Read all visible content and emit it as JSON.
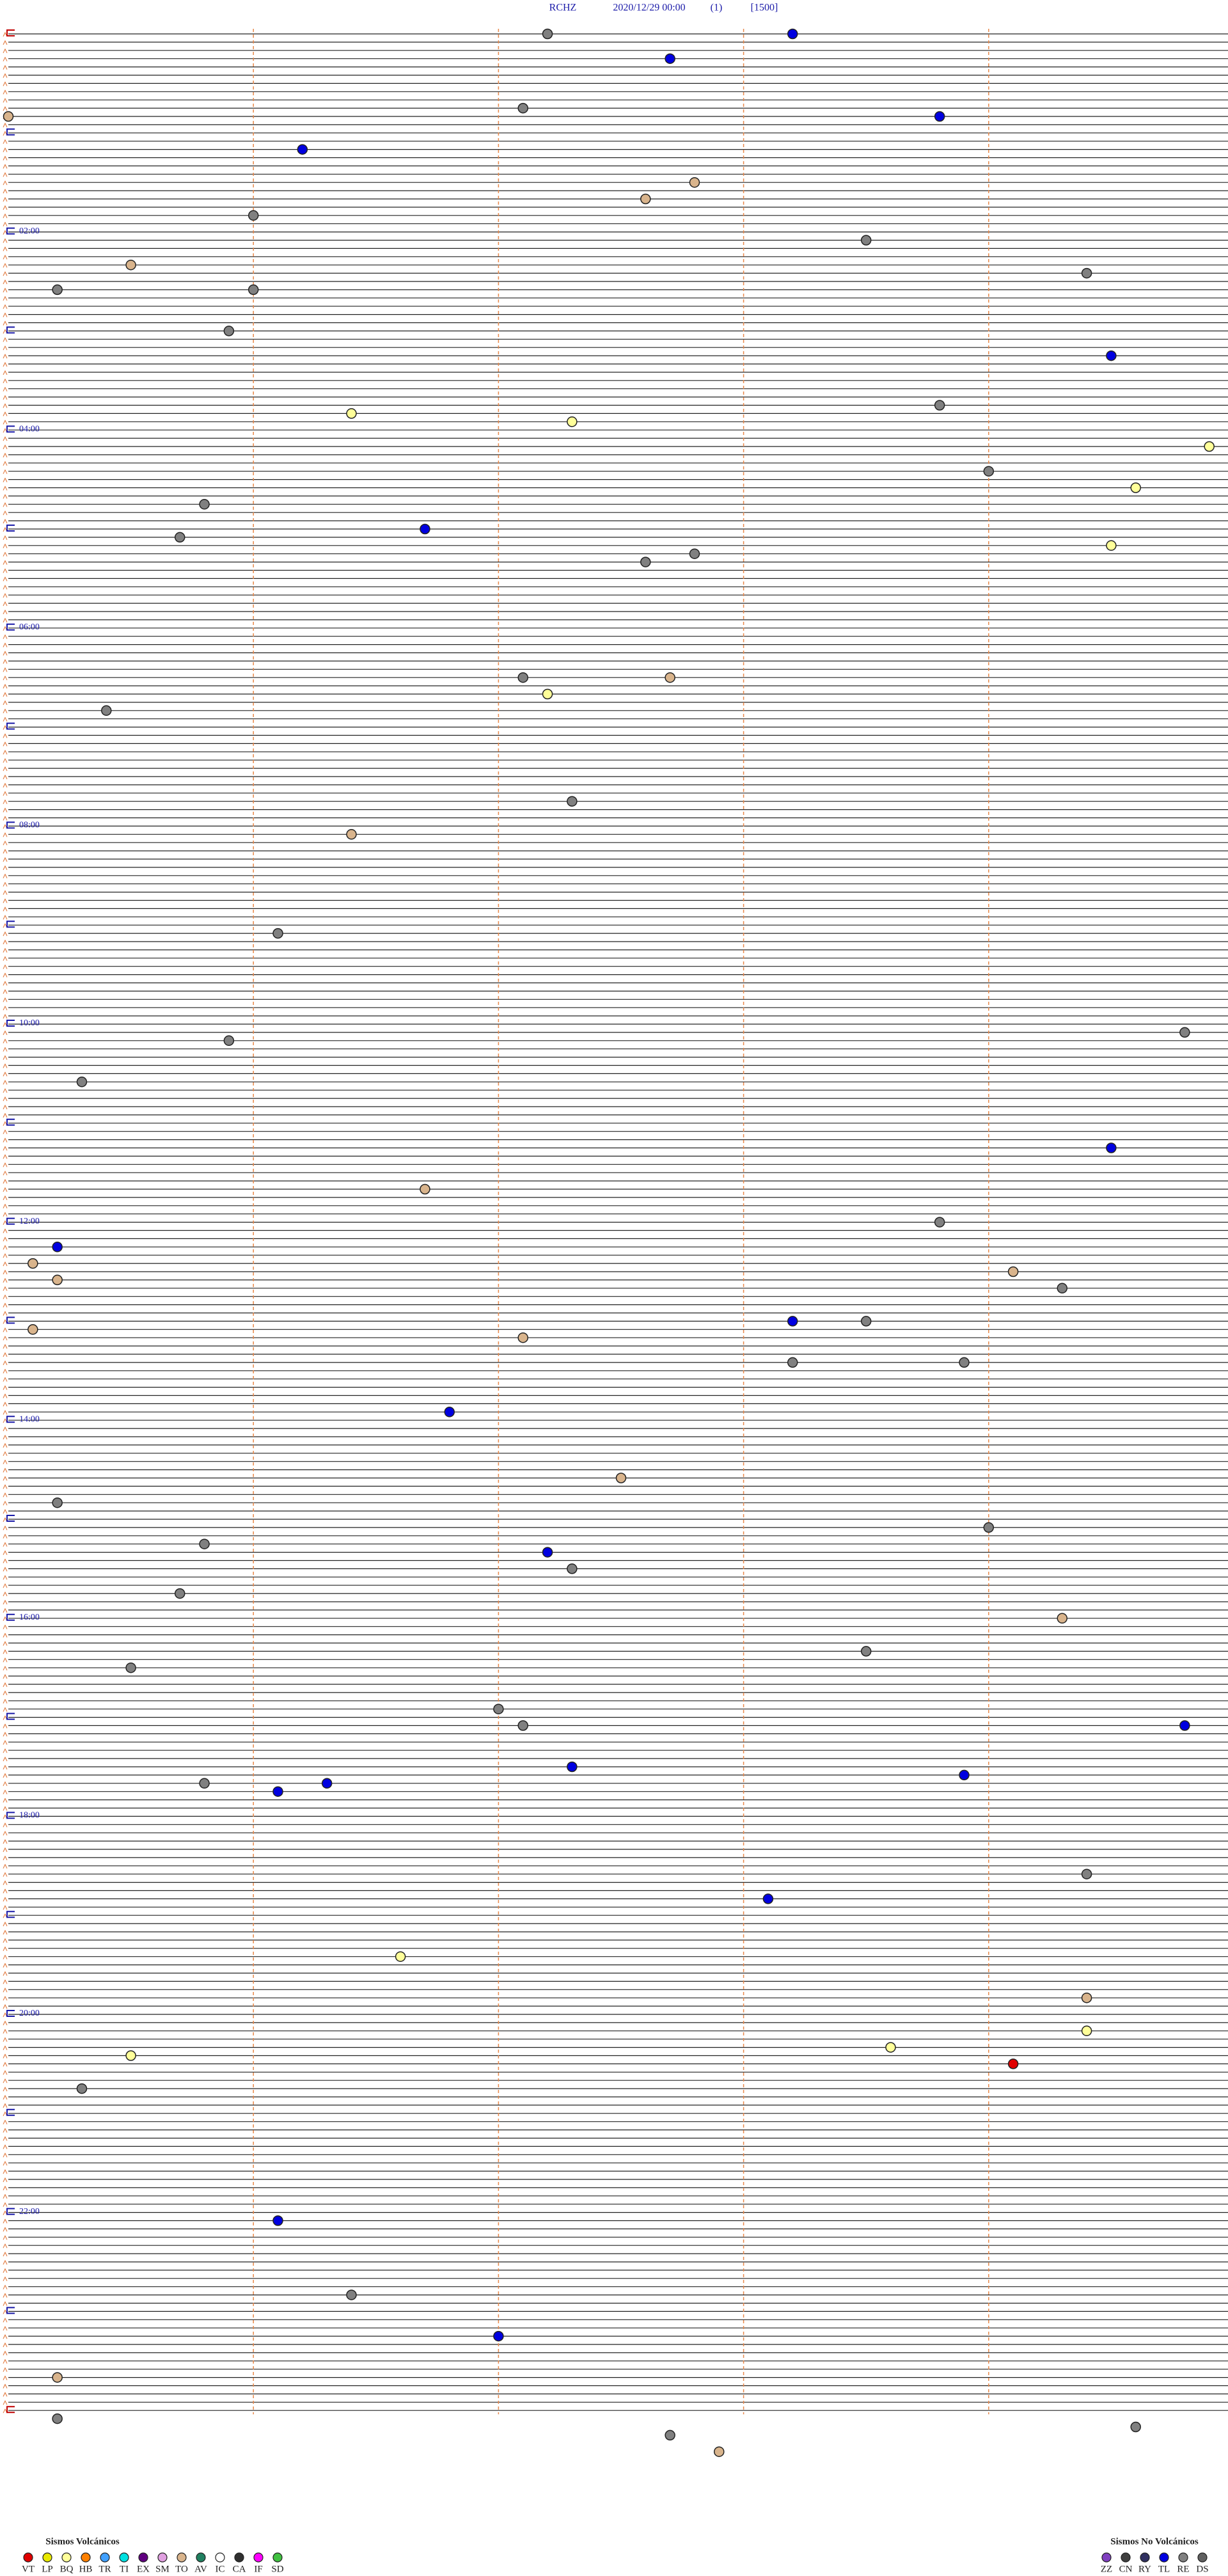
{
  "chart_data": {
    "type": "helicorder",
    "station": "RCHZ",
    "date": "2020/12/29 00:00",
    "page": "(1)",
    "scale": "[1500]",
    "xlim": [
      0,
      5
    ],
    "xgrid": [
      1,
      2,
      3,
      4
    ],
    "ylim": [
      0,
      1440
    ],
    "row_minutes": 5,
    "yticks": [
      {
        "value": 120,
        "label": "02:00"
      },
      {
        "value": 240,
        "label": "04:00"
      },
      {
        "value": 360,
        "label": "06:00"
      },
      {
        "value": 480,
        "label": "08:00"
      },
      {
        "value": 600,
        "label": "10:00"
      },
      {
        "value": 720,
        "label": "12:00"
      },
      {
        "value": 840,
        "label": "14:00"
      },
      {
        "value": 960,
        "label": "16:00"
      },
      {
        "value": 1080,
        "label": "18:00"
      },
      {
        "value": 1200,
        "label": "20:00"
      },
      {
        "value": 1320,
        "label": "22:00"
      }
    ],
    "legend": [
      {
        "title": "Sismos Volcánicos",
        "corner": "bottom-left",
        "items": [
          {
            "label": "VT",
            "color": "#e00000",
            "events": [
              1234.1
            ]
          },
          {
            "label": "LP",
            "color": "#e8e800",
            "events": []
          },
          {
            "label": "BQ",
            "color": "#ffff99",
            "events": [
              231.4,
              237.3,
              254.9,
              279.6,
              314.5,
              402.2,
              1166.6,
              1214.4,
              1223.6,
              1225.5
            ]
          },
          {
            "label": "HB",
            "color": "#ff8000",
            "events": []
          },
          {
            "label": "TR",
            "color": "#40a0ff",
            "events": []
          },
          {
            "label": "TI",
            "color": "#00e0e0",
            "events": []
          },
          {
            "label": "EX",
            "color": "#600080",
            "events": []
          },
          {
            "label": "SM",
            "color": "#e0a0e0",
            "events": []
          },
          {
            "label": "TO",
            "color": "#d9b48c",
            "events": [
              50.0,
              92.8,
              102.6,
              140.5,
              392.7,
              486.4,
              701.7,
              745.1,
              755.2,
              754.1,
              785.1,
              792.1,
              877.5,
              964.3,
              1194.4,
              1420.2,
              1467.9
            ]
          },
          {
            "label": "AV",
            "color": "#208060",
            "events": []
          },
          {
            "label": "IC",
            "color": "#ffffff",
            "events": []
          },
          {
            "label": "CA",
            "color": "#303030",
            "events": []
          },
          {
            "label": "IF",
            "color": "#ff00ff",
            "events": []
          },
          {
            "label": "SD",
            "color": "#40c040",
            "events": []
          }
        ]
      },
      {
        "title": "Sismos No Volcánicos",
        "corner": "bottom-right",
        "items": [
          {
            "label": "ZZ",
            "color": "#8040c0",
            "events": []
          },
          {
            "label": "CN",
            "color": "#404040",
            "events": []
          },
          {
            "label": "RY",
            "color": "#303060",
            "events": []
          },
          {
            "label": "TL",
            "color": "#0000e0",
            "events": [
              3.2,
              17.7,
              53.8,
              71.2,
              199.5,
              301.7,
              679.5,
              735.2,
              783.2,
              836.8,
              922.2,
              1029.8,
              1052.3,
              1061.3,
              1066.1,
              1058.9,
              1133.1,
              1326.1,
              1397.0
            ]
          },
          {
            "label": "RE",
            "color": "#808080",
            "events": [
              2.2,
              47.1,
              111.0,
              128.5,
              149.4,
              155.2,
              156.0,
              180.9,
              228.8,
              269.0,
              285.8,
              305.7,
              317.8,
              322.6,
              392.1,
              410.4,
              467.3,
              546.1,
              609.8,
              610.9,
              635.3,
              723.8,
              764.3,
              783.5,
              808.2,
              808.9,
              890.2,
              909.0,
              915.8,
              932.3,
              945.7,
              983.5,
              990.5,
              1017.0,
              1027.1,
              1060.8,
              1119.4,
              1245.3,
              1371.4,
              1445.2,
              1454.6,
              1457.7
            ]
          },
          {
            "label": "DS",
            "color": "#606060",
            "events": []
          }
        ]
      }
    ]
  }
}
